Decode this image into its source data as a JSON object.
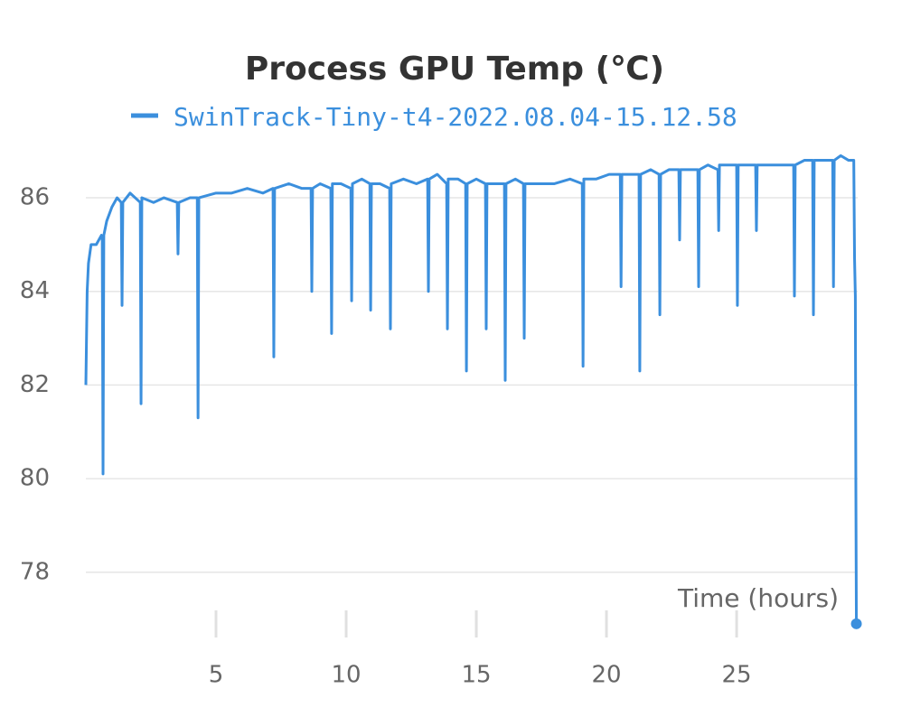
{
  "chart_data": {
    "type": "line",
    "title": "Process GPU Temp (℃)",
    "x_label": "Time (hours)",
    "x": [
      0,
      0.05,
      0.1,
      0.2,
      0.4,
      0.6,
      0.63,
      0.66,
      0.69,
      0.8,
      1.0,
      1.2,
      1.36,
      1.39,
      1.42,
      1.7,
      2.09,
      2.12,
      2.15,
      2.6,
      3.0,
      3.51,
      3.54,
      3.57,
      4.0,
      4.28,
      4.31,
      4.34,
      5.0,
      5.6,
      6.2,
      6.8,
      7.19,
      7.22,
      7.25,
      7.8,
      8.3,
      8.65,
      8.68,
      8.71,
      9.0,
      9.41,
      9.44,
      9.47,
      9.8,
      10.18,
      10.21,
      10.24,
      10.6,
      10.91,
      10.94,
      10.97,
      11.3,
      11.67,
      11.7,
      11.73,
      12.2,
      12.7,
      13.13,
      13.16,
      13.19,
      13.5,
      13.86,
      13.89,
      13.92,
      14.3,
      14.59,
      14.62,
      14.65,
      15.0,
      15.35,
      15.38,
      15.41,
      15.8,
      16.08,
      16.11,
      16.14,
      16.5,
      16.81,
      16.84,
      16.87,
      17.4,
      18.0,
      18.6,
      19.07,
      19.1,
      19.13,
      19.6,
      20.1,
      20.53,
      20.56,
      20.59,
      20.9,
      21.25,
      21.28,
      21.31,
      21.7,
      22.02,
      22.05,
      22.08,
      22.4,
      22.78,
      22.81,
      22.84,
      23.2,
      23.51,
      23.54,
      23.57,
      23.9,
      24.28,
      24.31,
      24.34,
      24.7,
      25.0,
      25.03,
      25.06,
      25.4,
      25.73,
      25.76,
      25.79,
      26.3,
      26.8,
      27.19,
      27.22,
      27.25,
      27.6,
      27.92,
      27.95,
      27.98,
      28.3,
      28.69,
      28.72,
      28.75,
      29.0,
      29.3,
      29.5,
      29.53,
      29.56,
      29.58,
      29.6
    ],
    "series": [
      {
        "name": "SwinTrack-Tiny-t4-2022.08.04-15.12.58",
        "color": "#3b8fdd",
        "values": [
          82.0,
          84.0,
          84.6,
          85.0,
          85.0,
          85.2,
          85.1,
          80.1,
          85.2,
          85.5,
          85.8,
          86.0,
          85.9,
          83.7,
          85.9,
          86.1,
          85.9,
          81.6,
          86.0,
          85.9,
          86.0,
          85.9,
          84.8,
          85.9,
          86.0,
          86.0,
          81.3,
          86.0,
          86.1,
          86.1,
          86.2,
          86.1,
          86.2,
          82.6,
          86.2,
          86.3,
          86.2,
          86.2,
          84.0,
          86.2,
          86.3,
          86.2,
          83.1,
          86.3,
          86.3,
          86.2,
          83.8,
          86.3,
          86.4,
          86.3,
          83.6,
          86.3,
          86.3,
          86.2,
          83.2,
          86.3,
          86.4,
          86.3,
          86.4,
          84.0,
          86.4,
          86.5,
          86.3,
          83.2,
          86.4,
          86.4,
          86.3,
          82.3,
          86.3,
          86.4,
          86.3,
          83.2,
          86.3,
          86.3,
          86.3,
          82.1,
          86.3,
          86.4,
          86.3,
          83.0,
          86.3,
          86.3,
          86.3,
          86.4,
          86.3,
          82.4,
          86.4,
          86.4,
          86.5,
          86.5,
          84.1,
          86.5,
          86.5,
          86.5,
          82.3,
          86.5,
          86.6,
          86.5,
          83.5,
          86.5,
          86.6,
          86.6,
          85.1,
          86.6,
          86.6,
          86.6,
          84.1,
          86.6,
          86.7,
          86.6,
          85.3,
          86.7,
          86.7,
          86.7,
          83.7,
          86.7,
          86.7,
          86.7,
          85.3,
          86.7,
          86.7,
          86.7,
          86.7,
          83.9,
          86.7,
          86.8,
          86.8,
          83.5,
          86.8,
          86.8,
          86.8,
          84.1,
          86.8,
          86.9,
          86.8,
          86.8,
          84.7,
          83.9,
          79.9,
          76.9
        ]
      }
    ],
    "xlim": [
      0,
      29.65
    ],
    "xticks": [
      5,
      10,
      15,
      20,
      25
    ],
    "ylim": [
      76.8,
      87.1
    ],
    "yticks": [
      78,
      80,
      82,
      84,
      86
    ],
    "grid": true
  }
}
